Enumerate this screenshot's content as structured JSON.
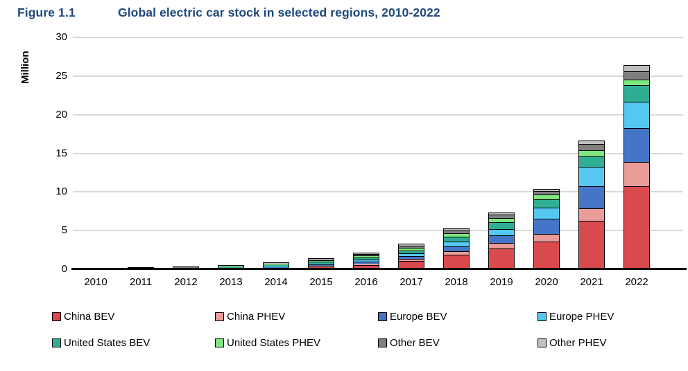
{
  "header": {
    "figure_label": "Figure 1.1",
    "title": "Global electric car stock in selected regions, 2010-2022",
    "title_color": "#1f497d"
  },
  "chart_data": {
    "type": "bar",
    "stacked": true,
    "title": "Global electric car stock in selected regions, 2010-2022",
    "ylabel": "Million",
    "xlabel": "",
    "ylim": [
      0,
      30
    ],
    "yticks": [
      0,
      5,
      10,
      15,
      20,
      25,
      30
    ],
    "grid": "horizontal",
    "gridline_color": "#d9d9d9",
    "legend_position": "bottom",
    "categories": [
      "2010",
      "2011",
      "2012",
      "2013",
      "2014",
      "2015",
      "2016",
      "2017",
      "2018",
      "2019",
      "2020",
      "2021",
      "2022"
    ],
    "series": [
      {
        "name": "China BEV",
        "color": "#d94a4f",
        "values": [
          0.005,
          0.01,
          0.017,
          0.03,
          0.08,
          0.23,
          0.49,
          0.95,
          1.79,
          2.58,
          3.51,
          6.2,
          10.65
        ]
      },
      {
        "name": "China PHEV",
        "color": "#ea9c99",
        "values": [
          0.001,
          0.002,
          0.003,
          0.003,
          0.03,
          0.09,
          0.17,
          0.28,
          0.47,
          0.77,
          1.0,
          1.6,
          3.15
        ]
      },
      {
        "name": "Europe BEV",
        "color": "#4475c7",
        "values": [
          0.003,
          0.012,
          0.03,
          0.06,
          0.11,
          0.18,
          0.25,
          0.37,
          0.63,
          0.97,
          1.91,
          2.9,
          4.35
        ]
      },
      {
        "name": "Europe PHEV",
        "color": "#55c7f0",
        "values": [
          0.001,
          0.003,
          0.012,
          0.03,
          0.08,
          0.15,
          0.26,
          0.37,
          0.58,
          0.77,
          1.43,
          2.5,
          3.45
        ]
      },
      {
        "name": "United States BEV",
        "color": "#2fae94",
        "values": [
          0.004,
          0.015,
          0.028,
          0.08,
          0.14,
          0.21,
          0.3,
          0.4,
          0.64,
          0.88,
          1.12,
          1.3,
          2.1
        ]
      },
      {
        "name": "United States PHEV",
        "color": "#7ee87e",
        "values": [
          0.001,
          0.008,
          0.045,
          0.09,
          0.15,
          0.19,
          0.26,
          0.36,
          0.47,
          0.57,
          0.63,
          0.8,
          0.75
        ]
      },
      {
        "name": "Other BEV",
        "color": "#7f7f7f",
        "values": [
          0.004,
          0.012,
          0.035,
          0.07,
          0.08,
          0.13,
          0.2,
          0.27,
          0.34,
          0.42,
          0.41,
          0.8,
          1.1
        ]
      },
      {
        "name": "Other PHEV",
        "color": "#bfbfbf",
        "values": [
          0.001,
          0.003,
          0.01,
          0.017,
          0.03,
          0.06,
          0.08,
          0.1,
          0.2,
          0.24,
          0.24,
          0.4,
          0.7
        ]
      }
    ]
  }
}
